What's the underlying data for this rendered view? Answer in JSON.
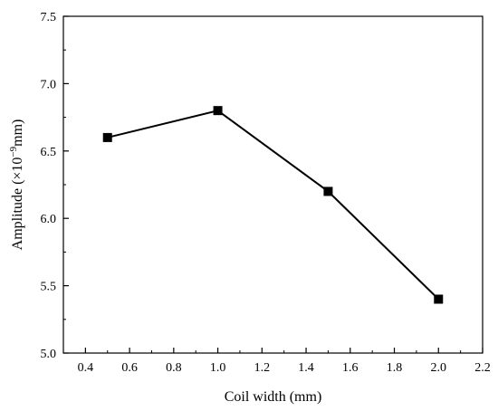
{
  "chart_data": {
    "type": "line",
    "title": "",
    "xlabel": "Coil width (mm)",
    "ylabel": {
      "prefix": "Amplitude (×10",
      "exponent": "−9",
      "suffix": "mm)"
    },
    "xlim": [
      0.3,
      2.2
    ],
    "ylim": [
      5.0,
      7.5
    ],
    "x_ticks": [
      0.4,
      0.6,
      0.8,
      1.0,
      1.2,
      1.4,
      1.6,
      1.8,
      2.0,
      2.2
    ],
    "x_tick_labels": [
      "0.4",
      "0.6",
      "0.8",
      "1.0",
      "1.2",
      "1.4",
      "1.6",
      "1.8",
      "2.0",
      "2.2"
    ],
    "y_ticks": [
      5.0,
      5.5,
      6.0,
      6.5,
      7.0,
      7.5
    ],
    "y_tick_labels": [
      "5.0",
      "5.5",
      "6.0",
      "6.5",
      "7.0",
      "7.5"
    ],
    "grid": false,
    "legend": "none",
    "series": [
      {
        "x": [
          0.5,
          1.0,
          1.5,
          2.0
        ],
        "y": [
          6.6,
          6.8,
          6.2,
          5.4
        ],
        "marker": "square",
        "color": "#000000"
      }
    ]
  }
}
